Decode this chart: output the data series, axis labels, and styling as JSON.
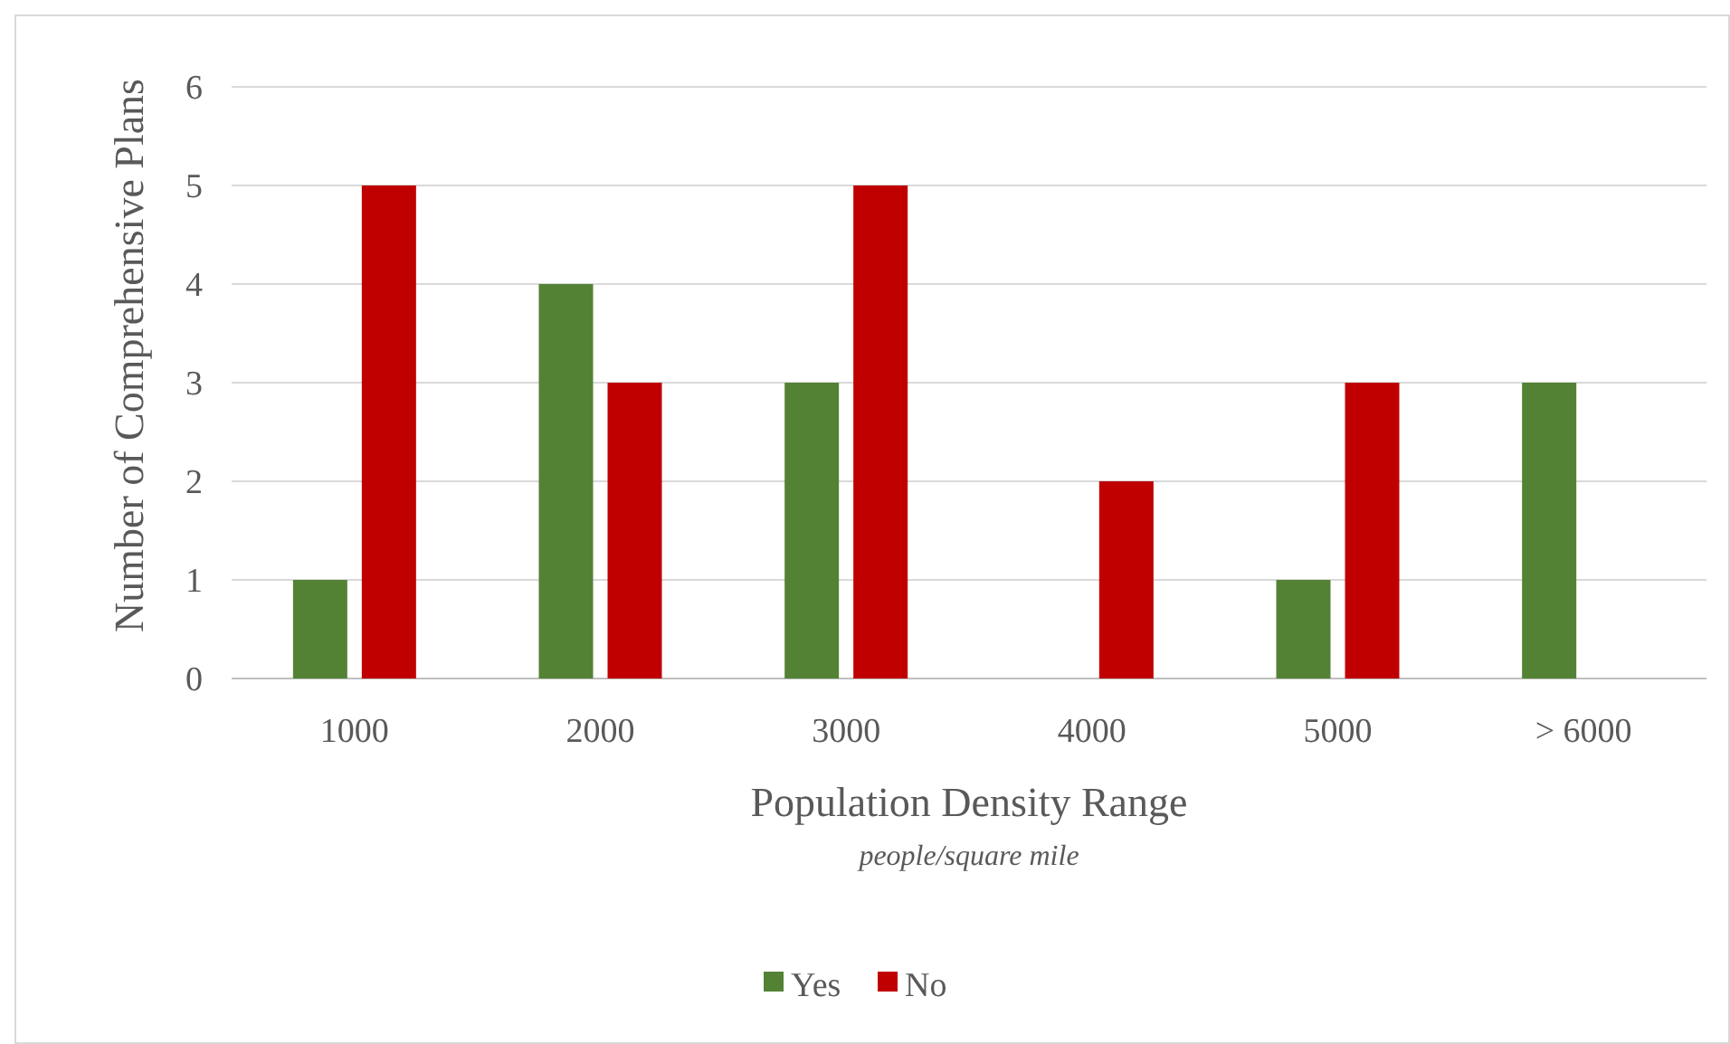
{
  "chart_data": {
    "type": "bar",
    "xlabel": "Population Density Range",
    "annotations": [
      "people/square mile"
    ],
    "ylabel": "Number of Comprehensive Plans",
    "categories": [
      "1000",
      "2000",
      "3000",
      "4000",
      "5000",
      "> 6000"
    ],
    "series": [
      {
        "name": "Yes",
        "color": "#548235",
        "values": [
          1,
          4,
          3,
          0,
          1,
          3
        ]
      },
      {
        "name": "No",
        "color": "#c00000",
        "values": [
          5,
          3,
          5,
          2,
          3,
          0
        ]
      }
    ],
    "ylim": [
      0,
      6
    ],
    "yticks": [
      0,
      1,
      2,
      3,
      4,
      5,
      6
    ],
    "grid": "y",
    "legend": "bottom"
  }
}
